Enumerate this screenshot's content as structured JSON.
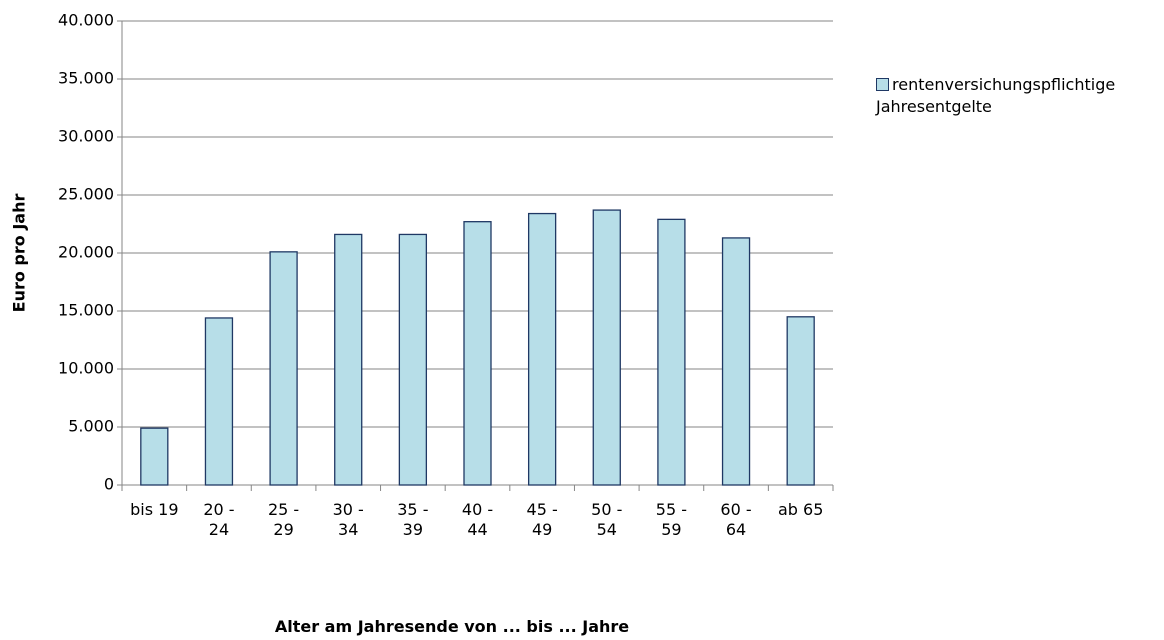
{
  "chart_data": {
    "type": "bar",
    "x_label": "Alter am Jahresende von ... bis ... Jahre",
    "y_label": "Euro pro Jahr",
    "categories": [
      "bis 19",
      "20 - 24",
      "25 - 29",
      "30 - 34",
      "35 - 39",
      "40 - 44",
      "45 - 49",
      "50 - 54",
      "55 - 59",
      "60 - 64",
      "ab 65"
    ],
    "series": [
      {
        "name": "rentenversichungspflichtige Jahresentgelte",
        "color": "#b7dee8",
        "edge_color": "#1f3864",
        "values": [
          4900,
          14400,
          20100,
          21600,
          21600,
          22700,
          23400,
          23700,
          22900,
          21300,
          14500
        ]
      }
    ],
    "ylim": [
      0,
      40000
    ],
    "yticks": [
      0,
      {
        "value": 5000,
        "label": "5.000"
      },
      {
        "value": 10000,
        "label": "10.000"
      },
      {
        "value": 15000,
        "label": "15.000"
      },
      {
        "value": 20000,
        "label": "20.000"
      },
      {
        "value": 25000,
        "label": "25.000"
      },
      {
        "value": 30000,
        "label": "30.000"
      },
      {
        "value": 35000,
        "label": "35.000"
      },
      {
        "value": 40000,
        "label": "40.000"
      }
    ],
    "grid": true,
    "legend": "right"
  }
}
